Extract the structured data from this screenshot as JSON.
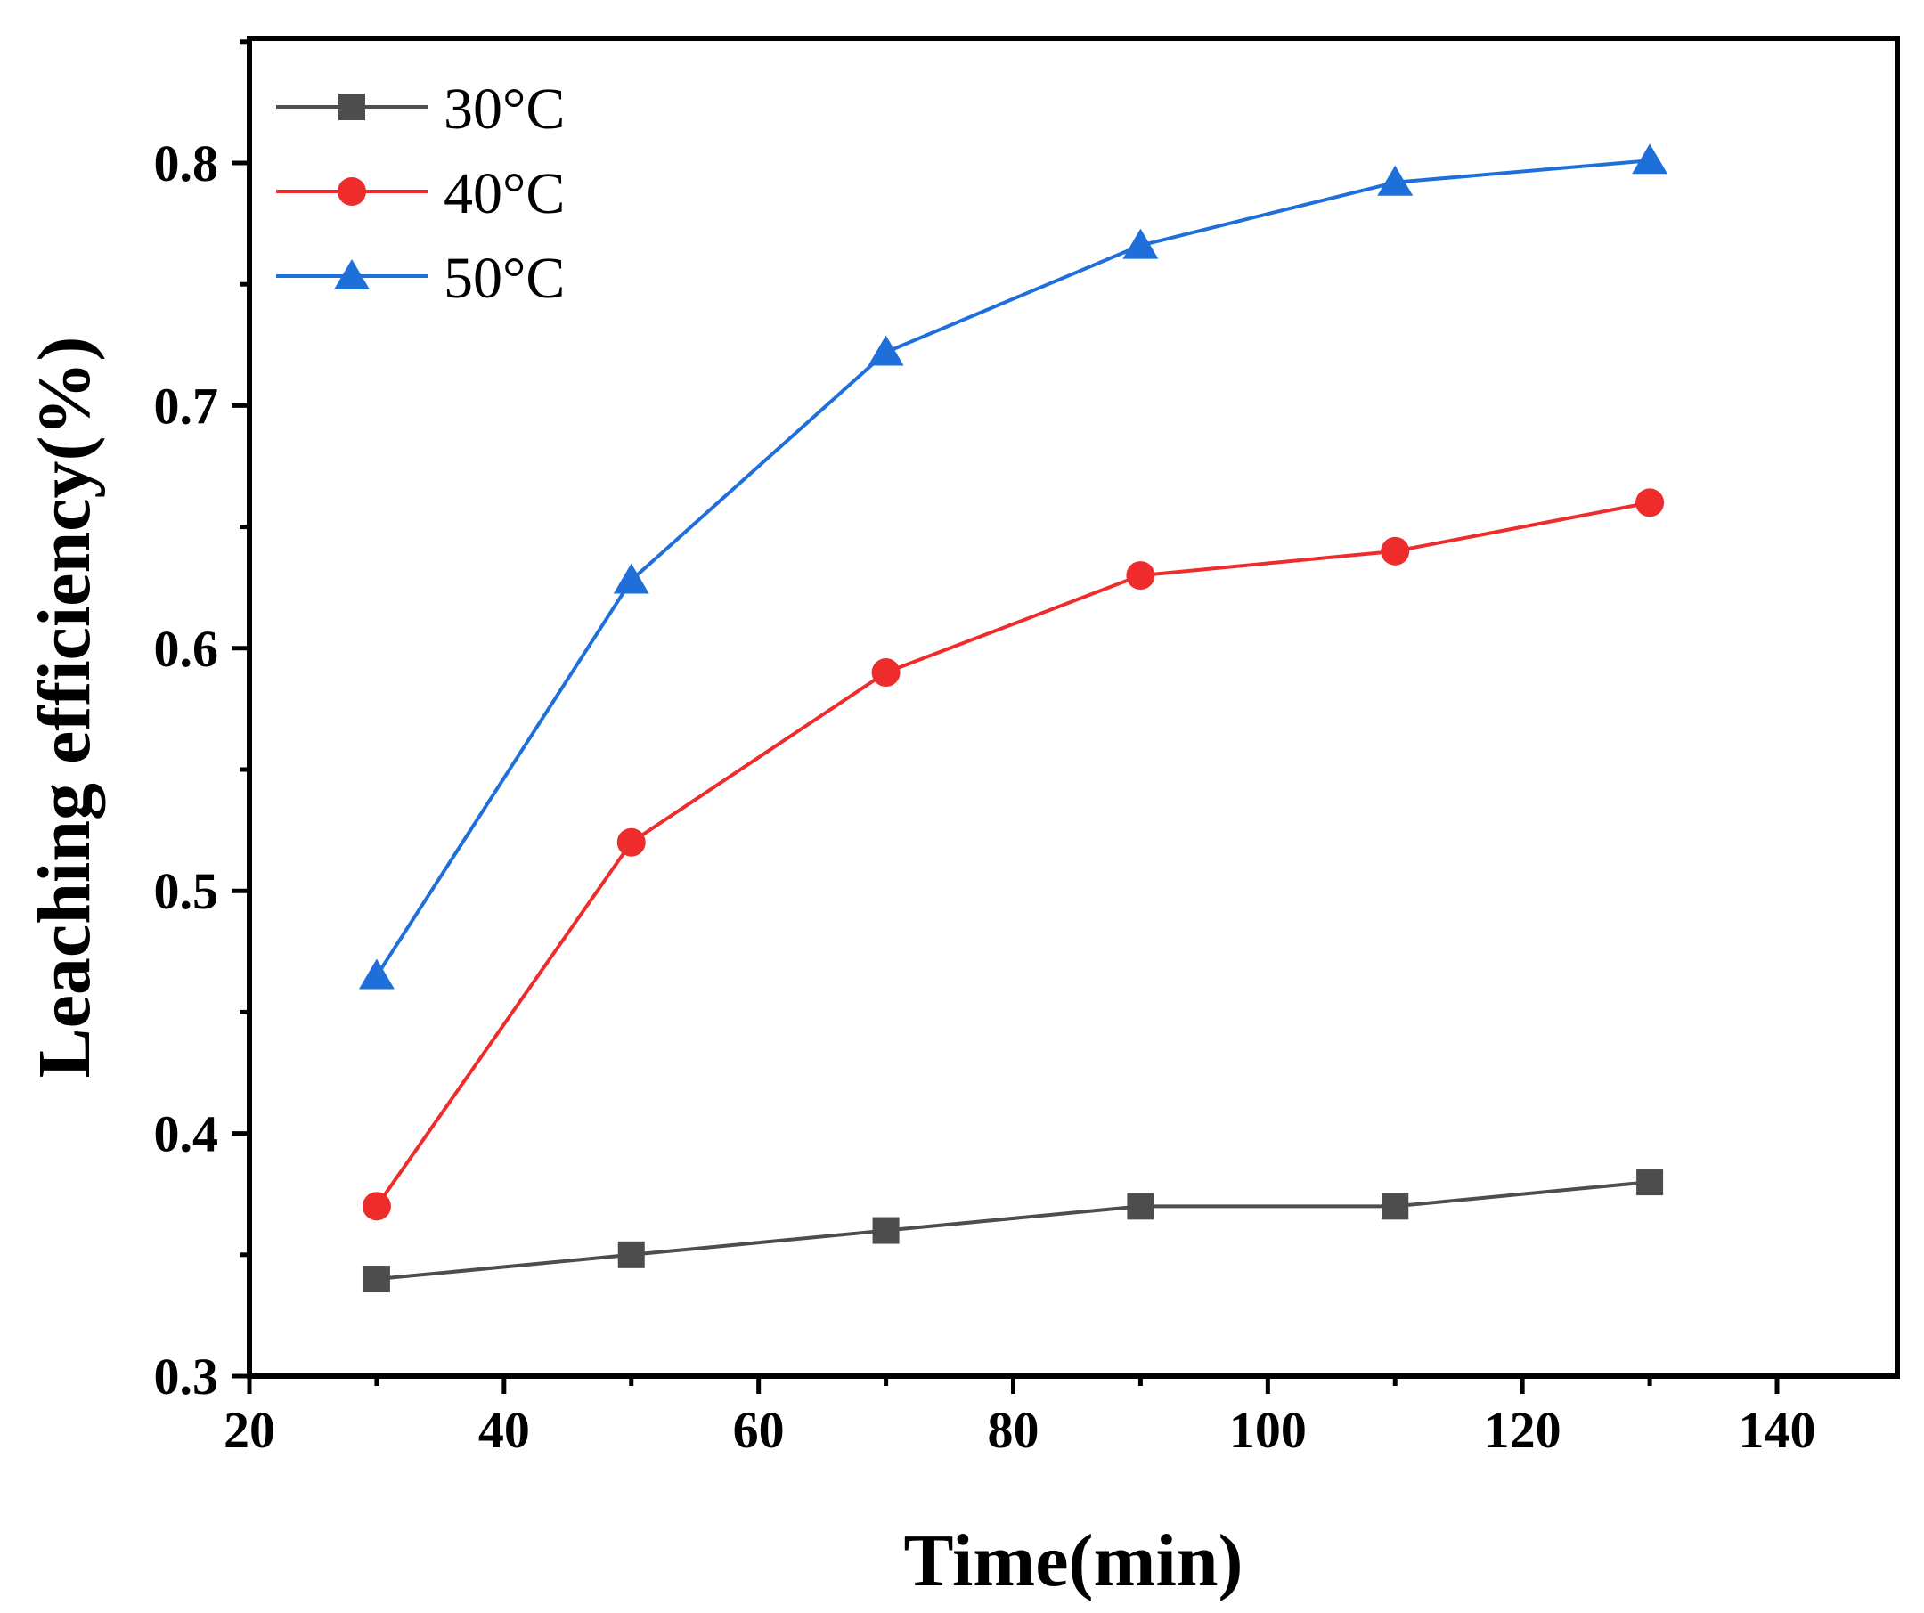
{
  "chart_data": {
    "type": "line",
    "title": "",
    "xlabel": "Time(min)",
    "ylabel": "Leaching efficiency(%)",
    "xlim": [
      20,
      150
    ],
    "ylim": [
      0.3,
      0.85
    ],
    "xticks": [
      20,
      40,
      60,
      80,
      100,
      120,
      140
    ],
    "xtick_labels": [
      "20",
      "40",
      "60",
      "80",
      "100",
      "120",
      "140"
    ],
    "yticks": [
      0.3,
      0.4,
      0.5,
      0.6,
      0.7,
      0.8
    ],
    "ytick_labels": [
      "0.3",
      "0.4",
      "0.5",
      "0.6",
      "0.7",
      "0.8"
    ],
    "grid": false,
    "legend_position": "top-left",
    "x": [
      30,
      50,
      70,
      90,
      110,
      130
    ],
    "series": [
      {
        "name": "30°C",
        "color": "#4d4d4d",
        "marker": "square",
        "values": [
          0.34,
          0.35,
          0.36,
          0.37,
          0.37,
          0.38
        ]
      },
      {
        "name": "40°C",
        "color": "#ee2c2c",
        "marker": "circle",
        "values": [
          0.37,
          0.52,
          0.59,
          0.63,
          0.64,
          0.66
        ]
      },
      {
        "name": "50°C",
        "color": "#1f6fdb",
        "marker": "triangle",
        "values": [
          0.465,
          0.628,
          0.722,
          0.766,
          0.792,
          0.801
        ]
      }
    ]
  }
}
